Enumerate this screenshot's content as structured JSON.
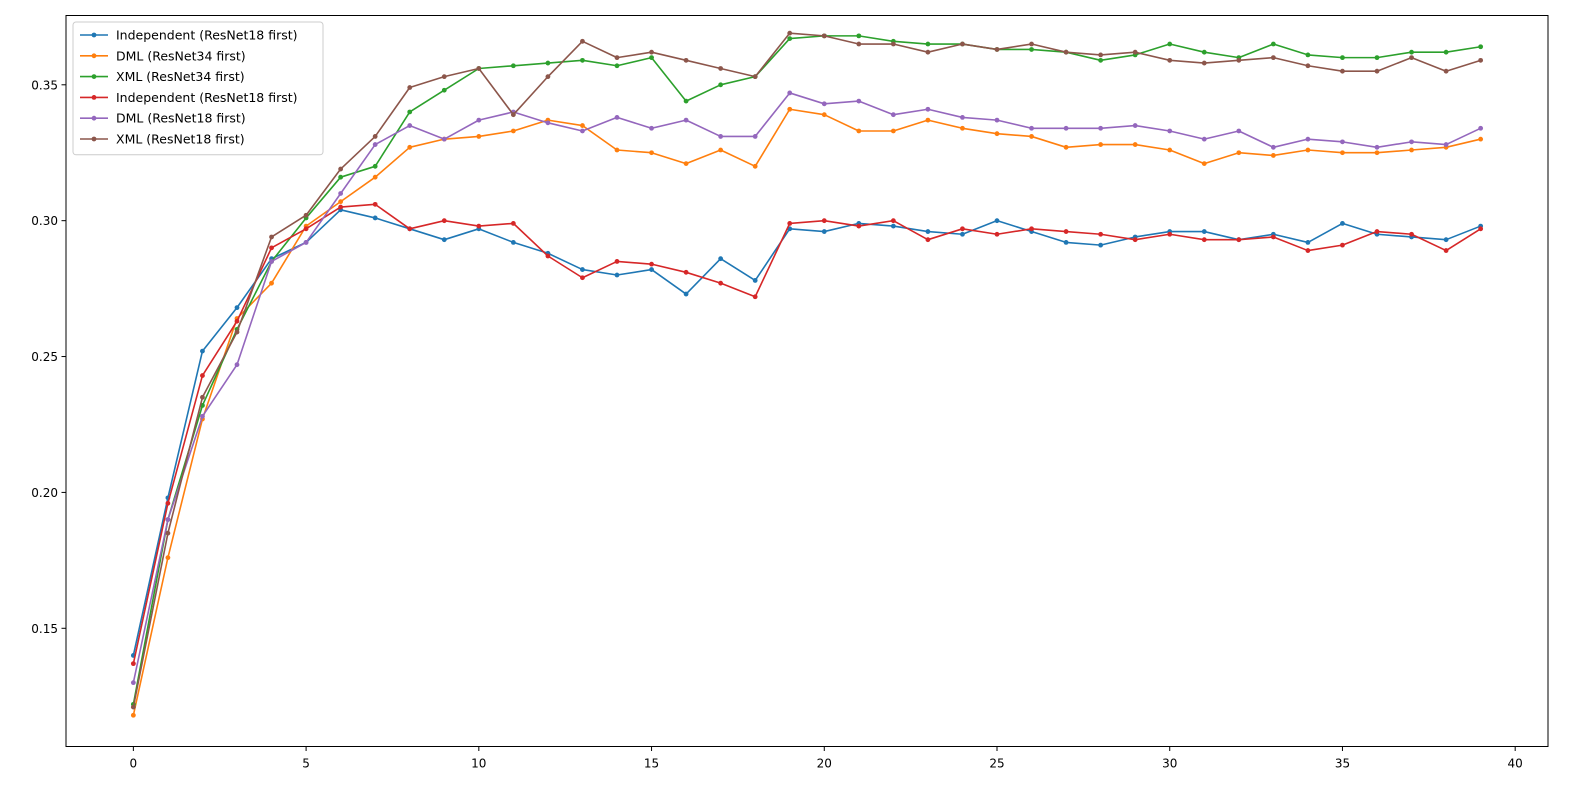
{
  "chart_data": {
    "type": "line",
    "title": "",
    "xlabel": "",
    "ylabel": "",
    "xlim": [
      -1.95,
      40.95
    ],
    "ylim": [
      0.1065,
      0.3755
    ],
    "xticks": [
      0,
      5,
      10,
      15,
      20,
      25,
      30,
      35,
      40
    ],
    "yticks": [
      0.15,
      0.2,
      0.25,
      0.3,
      0.35
    ],
    "ytick_labels": [
      "0.15",
      "0.20",
      "0.25",
      "0.30",
      "0.35"
    ],
    "grid": false,
    "legend_position": "top-left",
    "x": [
      0,
      1,
      2,
      3,
      4,
      5,
      6,
      7,
      8,
      9,
      10,
      11,
      12,
      13,
      14,
      15,
      16,
      17,
      18,
      19,
      20,
      21,
      22,
      23,
      24,
      25,
      26,
      27,
      28,
      29,
      30,
      31,
      32,
      33,
      34,
      35,
      36,
      37,
      38,
      39
    ],
    "series": [
      {
        "name": "Independent (ResNet18 first)",
        "color": "#1f77b4",
        "values": [
          0.14,
          0.198,
          0.252,
          0.268,
          0.286,
          0.292,
          0.304,
          0.301,
          0.297,
          0.293,
          0.297,
          0.292,
          0.288,
          0.282,
          0.28,
          0.282,
          0.273,
          0.286,
          0.278,
          0.297,
          0.296,
          0.299,
          0.298,
          0.296,
          0.295,
          0.3,
          0.296,
          0.292,
          0.291,
          0.294,
          0.296,
          0.296,
          0.293,
          0.295,
          0.292,
          0.299,
          0.295,
          0.294,
          0.293,
          0.298
        ]
      },
      {
        "name": "DML (ResNet34 first)",
        "color": "#ff7f0e",
        "values": [
          0.118,
          0.176,
          0.227,
          0.264,
          0.277,
          0.298,
          0.307,
          0.316,
          0.327,
          0.33,
          0.331,
          0.333,
          0.337,
          0.335,
          0.326,
          0.325,
          0.321,
          0.326,
          0.32,
          0.341,
          0.339,
          0.333,
          0.333,
          0.337,
          0.334,
          0.332,
          0.331,
          0.327,
          0.328,
          0.328,
          0.326,
          0.321,
          0.325,
          0.324,
          0.326,
          0.325,
          0.325,
          0.326,
          0.327,
          0.33
        ]
      },
      {
        "name": "XML (ResNet34 first)",
        "color": "#2ca02c",
        "values": [
          0.122,
          0.19,
          0.232,
          0.26,
          0.285,
          0.301,
          0.316,
          0.32,
          0.34,
          0.348,
          0.356,
          0.357,
          0.358,
          0.359,
          0.357,
          0.36,
          0.344,
          0.35,
          0.353,
          0.367,
          0.368,
          0.368,
          0.366,
          0.365,
          0.365,
          0.363,
          0.363,
          0.362,
          0.359,
          0.361,
          0.365,
          0.362,
          0.36,
          0.365,
          0.361,
          0.36,
          0.36,
          0.362,
          0.362,
          0.364
        ]
      },
      {
        "name": "Independent (ResNet18 first)",
        "color": "#d62728",
        "values": [
          0.137,
          0.196,
          0.243,
          0.263,
          0.29,
          0.297,
          0.305,
          0.306,
          0.297,
          0.3,
          0.298,
          0.299,
          0.287,
          0.279,
          0.285,
          0.284,
          0.281,
          0.277,
          0.272,
          0.299,
          0.3,
          0.298,
          0.3,
          0.293,
          0.297,
          0.295,
          0.297,
          0.296,
          0.295,
          0.293,
          0.295,
          0.293,
          0.293,
          0.294,
          0.289,
          0.291,
          0.296,
          0.295,
          0.289,
          0.297
        ]
      },
      {
        "name": "DML (ResNet18 first)",
        "color": "#9467bd",
        "values": [
          0.13,
          0.19,
          0.228,
          0.247,
          0.285,
          0.292,
          0.31,
          0.328,
          0.335,
          0.33,
          0.337,
          0.34,
          0.336,
          0.333,
          0.338,
          0.334,
          0.337,
          0.331,
          0.331,
          0.347,
          0.343,
          0.344,
          0.339,
          0.341,
          0.338,
          0.337,
          0.334,
          0.334,
          0.334,
          0.335,
          0.333,
          0.33,
          0.333,
          0.327,
          0.33,
          0.329,
          0.327,
          0.329,
          0.328,
          0.334
        ]
      },
      {
        "name": "XML (ResNet18 first)",
        "color": "#8c564b",
        "values": [
          0.121,
          0.185,
          0.235,
          0.259,
          0.294,
          0.302,
          0.319,
          0.331,
          0.349,
          0.353,
          0.356,
          0.339,
          0.353,
          0.366,
          0.36,
          0.362,
          0.359,
          0.356,
          0.353,
          0.369,
          0.368,
          0.365,
          0.365,
          0.362,
          0.365,
          0.363,
          0.365,
          0.362,
          0.361,
          0.362,
          0.359,
          0.358,
          0.359,
          0.36,
          0.357,
          0.355,
          0.355,
          0.36,
          0.355,
          0.359
        ]
      }
    ]
  }
}
